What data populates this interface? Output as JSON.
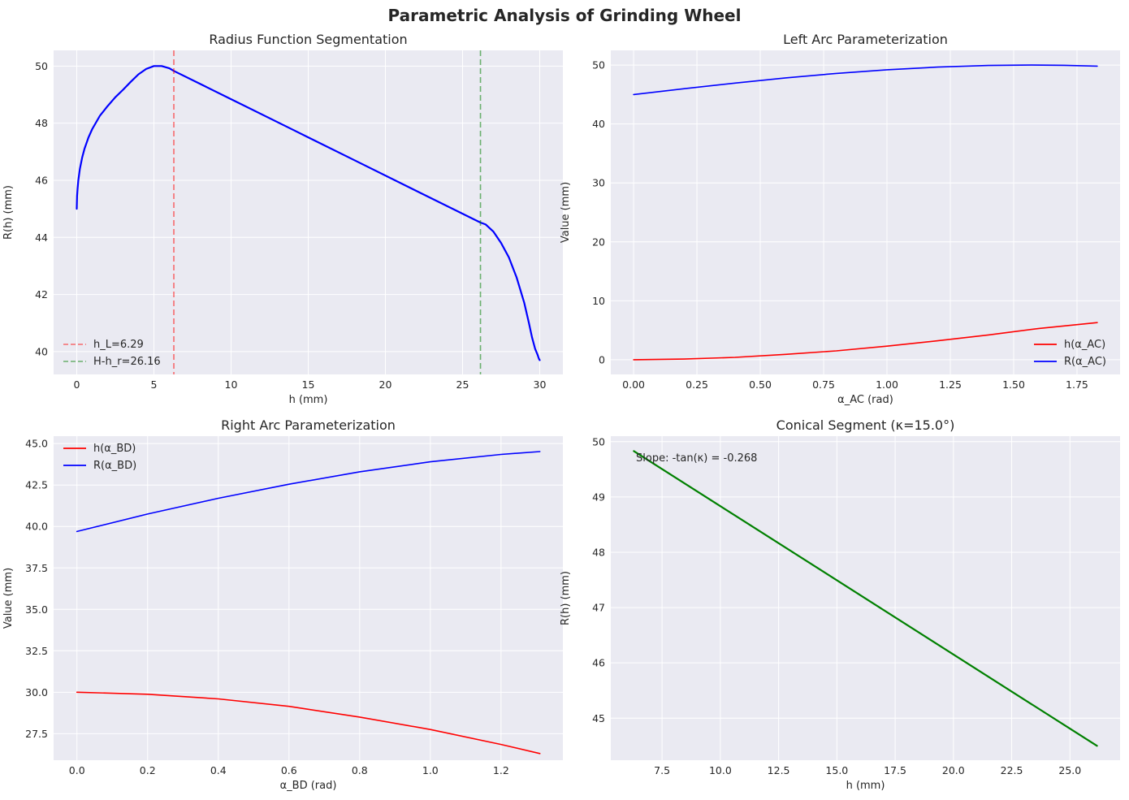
{
  "figure": {
    "title": "Parametric Analysis of Grinding Wheel"
  },
  "colors": {
    "plot_bg": "#eaeaf2",
    "grid": "#ffffff",
    "text": "#262626"
  },
  "chart_data": [
    {
      "type": "line",
      "title": "Radius Function Segmentation",
      "xlabel": "h (mm)",
      "ylabel": "R(h) (mm)",
      "xlim": [
        -1.5,
        31.5
      ],
      "ylim": [
        39.2,
        50.55
      ],
      "xticks": [
        0,
        5,
        10,
        15,
        20,
        25,
        30
      ],
      "yticks": [
        40,
        42,
        44,
        46,
        48,
        50
      ],
      "legend_position": "lower-left",
      "series": [
        {
          "name": "R(h)",
          "color": "#0000ff",
          "width": 2.2,
          "in_legend": false,
          "x": [
            0,
            0.02,
            0.05,
            0.1,
            0.2,
            0.35,
            0.5,
            0.75,
            1.0,
            1.5,
            2.0,
            2.5,
            3.0,
            3.5,
            4.0,
            4.5,
            5.0,
            5.5,
            6.0,
            6.29,
            10,
            14,
            18,
            22,
            26.16,
            26.5,
            27,
            27.5,
            28,
            28.5,
            29,
            29.3,
            29.5,
            29.7,
            29.85,
            29.95,
            30.0
          ],
          "y": [
            45.0,
            45.45,
            45.7,
            45.99,
            46.39,
            46.8,
            47.1,
            47.49,
            47.79,
            48.26,
            48.6,
            48.91,
            49.17,
            49.45,
            49.71,
            49.9,
            50.0,
            50.0,
            49.92,
            49.83,
            48.84,
            47.77,
            46.7,
            45.63,
            44.52,
            44.45,
            44.2,
            43.8,
            43.3,
            42.6,
            41.7,
            41.0,
            40.5,
            40.1,
            39.9,
            39.75,
            39.7
          ]
        },
        {
          "name": "h_L=6.29",
          "type": "vline",
          "x": 6.29,
          "color": "#ff0000",
          "dash": true,
          "alpha": 0.55
        },
        {
          "name": "H-h_r=26.16",
          "type": "vline",
          "x": 26.16,
          "color": "#008000",
          "dash": true,
          "alpha": 0.55
        }
      ]
    },
    {
      "type": "line",
      "title": "Left Arc Parameterization",
      "xlabel": "α_AC (rad)",
      "ylabel": "Value (mm)",
      "xlim": [
        -0.09,
        1.92
      ],
      "ylim": [
        -2.5,
        52.5
      ],
      "xticks": [
        0.0,
        0.25,
        0.5,
        0.75,
        1.0,
        1.25,
        1.5,
        1.75
      ],
      "xtick_labels": [
        "0.00",
        "0.25",
        "0.50",
        "0.75",
        "1.00",
        "1.25",
        "1.50",
        "1.75"
      ],
      "yticks": [
        0,
        10,
        20,
        30,
        40,
        50
      ],
      "legend_position": "lower-right",
      "series": [
        {
          "name": "h(α_AC)",
          "color": "#ff0000",
          "width": 1.6,
          "x": [
            0,
            0.2,
            0.4,
            0.6,
            0.8,
            1.0,
            1.2,
            1.4,
            1.6,
            1.83
          ],
          "y": [
            0,
            0.1,
            0.4,
            0.9,
            1.5,
            2.3,
            3.2,
            4.2,
            5.3,
            6.29
          ]
        },
        {
          "name": "R(α_AC)",
          "color": "#0000ff",
          "width": 1.6,
          "x": [
            0,
            0.2,
            0.4,
            0.6,
            0.8,
            1.0,
            1.2,
            1.4,
            1.57,
            1.7,
            1.83
          ],
          "y": [
            45.0,
            45.99,
            46.95,
            47.83,
            48.59,
            49.21,
            49.66,
            49.93,
            50.0,
            49.96,
            49.83
          ]
        }
      ]
    },
    {
      "type": "line",
      "title": "Right Arc Parameterization",
      "xlabel": "α_BD (rad)",
      "ylabel": "Value (mm)",
      "xlim": [
        -0.066,
        1.375
      ],
      "ylim": [
        25.9,
        45.45
      ],
      "xticks": [
        0.0,
        0.2,
        0.4,
        0.6,
        0.8,
        1.0,
        1.2
      ],
      "xtick_labels": [
        "0.0",
        "0.2",
        "0.4",
        "0.6",
        "0.8",
        "1.0",
        "1.2"
      ],
      "yticks": [
        27.5,
        30.0,
        32.5,
        35.0,
        37.5,
        40.0,
        42.5,
        45.0
      ],
      "ytick_labels": [
        "27.5",
        "30.0",
        "32.5",
        "35.0",
        "37.5",
        "40.0",
        "42.5",
        "45.0"
      ],
      "legend_position": "upper-left",
      "series": [
        {
          "name": "h(α_BD)",
          "color": "#ff0000",
          "width": 1.6,
          "x": [
            0,
            0.2,
            0.4,
            0.6,
            0.8,
            1.0,
            1.2,
            1.31
          ],
          "y": [
            30.0,
            29.88,
            29.6,
            29.15,
            28.5,
            27.75,
            26.85,
            26.3
          ]
        },
        {
          "name": "R(α_BD)",
          "color": "#0000ff",
          "width": 1.6,
          "x": [
            0,
            0.2,
            0.4,
            0.6,
            0.8,
            1.0,
            1.2,
            1.31
          ],
          "y": [
            39.7,
            40.75,
            41.7,
            42.55,
            43.3,
            43.9,
            44.35,
            44.52
          ]
        }
      ]
    },
    {
      "type": "line",
      "title": "Conical Segment (κ=15.0°)",
      "xlabel": "h (mm)",
      "ylabel": "R(h) (mm)",
      "xlim": [
        5.3,
        27.15
      ],
      "ylim": [
        44.24,
        50.1
      ],
      "xticks": [
        7.5,
        10.0,
        12.5,
        15.0,
        17.5,
        20.0,
        22.5,
        25.0
      ],
      "xtick_labels": [
        "7.5",
        "10.0",
        "12.5",
        "15.0",
        "17.5",
        "20.0",
        "22.5",
        "25.0"
      ],
      "yticks": [
        45,
        46,
        47,
        48,
        49,
        50
      ],
      "legend_position": "none",
      "annotation": "Slope: -tan(κ) = -0.268",
      "series": [
        {
          "name": "R(h)",
          "color": "#008000",
          "width": 2.2,
          "in_legend": false,
          "x": [
            6.29,
            26.16
          ],
          "y": [
            49.83,
            44.5
          ]
        }
      ]
    }
  ]
}
